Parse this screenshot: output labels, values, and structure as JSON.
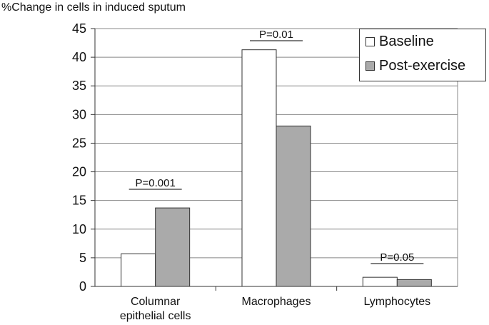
{
  "chart_data": {
    "type": "bar",
    "title": "",
    "ylabel": "%Change in cells in induced sputum",
    "xlabel": "",
    "categories": [
      "Columnar epithelial cells",
      "Macrophages",
      "Lymphocytes"
    ],
    "category_label_lines": [
      [
        "Columnar",
        "epithelial cells"
      ],
      [
        "Macrophages"
      ],
      [
        "Lymphocytes"
      ]
    ],
    "ylim": [
      0,
      45
    ],
    "yticks": [
      0,
      5,
      10,
      15,
      20,
      25,
      30,
      35,
      40,
      45
    ],
    "grid": true,
    "legend_position": "top-right",
    "series": [
      {
        "name": "Baseline",
        "color": "#ffffff",
        "values": [
          5.7,
          41.3,
          1.6
        ]
      },
      {
        "name": "Post-exercise",
        "color": "#aaaaaa",
        "values": [
          13.7,
          28.0,
          1.2
        ]
      }
    ],
    "annotations": [
      "P=0.001",
      "P=0.01",
      "P=0.05"
    ]
  }
}
